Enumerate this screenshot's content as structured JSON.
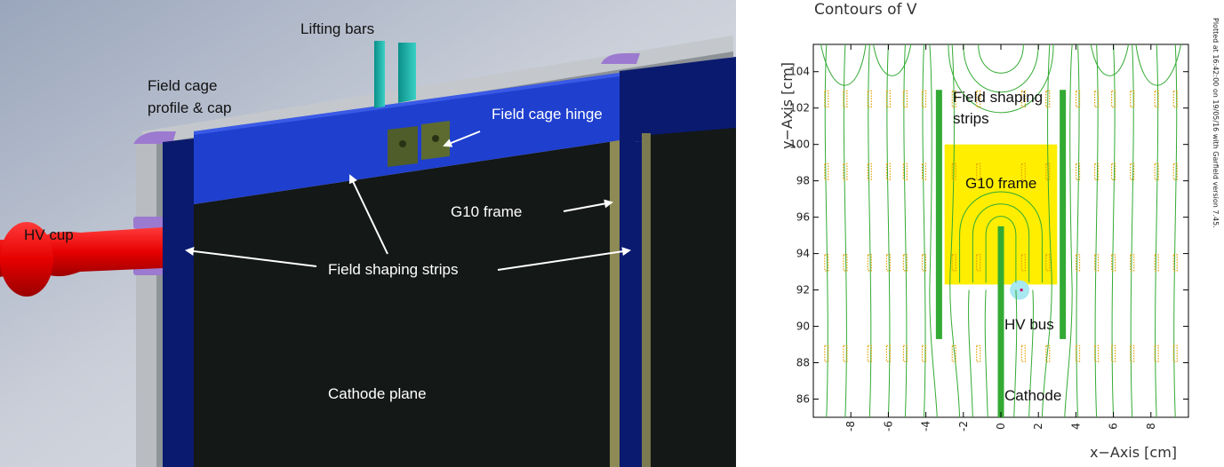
{
  "left_diagram": {
    "labels": {
      "lifting_bars": "Lifting bars",
      "field_cage_profile_line1": "Field cage",
      "field_cage_profile_line2": "profile & cap",
      "field_cage_hinge": "Field cage hinge",
      "hv_cup": "HV cup",
      "g10_frame": "G10 frame",
      "field_shaping_strips": "Field shaping strips",
      "cathode_plane": "Cathode plane"
    }
  },
  "chart_data": {
    "type": "contour",
    "title": "Contours of V",
    "xlabel": "x−Axis [cm]",
    "ylabel": "y−Axis [cm]",
    "xlim": [
      -10,
      10
    ],
    "ylim": [
      85,
      105.5
    ],
    "x_ticks": [
      -8,
      -6,
      -4,
      -2,
      0,
      2,
      4,
      6,
      8
    ],
    "y_ticks": [
      86,
      88,
      90,
      92,
      94,
      96,
      98,
      100,
      102,
      104
    ],
    "side_note": "Plotted at 16:42:00 on 19/05/16 with Garfield version 7.45.",
    "regions": {
      "g10_frame": {
        "label": "G10 frame",
        "x": [
          -3.0,
          3.0
        ],
        "y": [
          92.3,
          100.0
        ],
        "color": "#ffee00"
      },
      "field_shaping_strip_left": {
        "x": -3.3,
        "y": [
          89.3,
          103.0
        ],
        "color": "#33aa33"
      },
      "field_shaping_strip_right": {
        "x": 3.3,
        "y": [
          89.3,
          103.0
        ],
        "color": "#33aa33"
      },
      "cathode": {
        "x": 0,
        "y": [
          85.0,
          95.5
        ],
        "color": "#33aa33"
      },
      "hv_bus": {
        "x": 1.0,
        "y": 92.0,
        "r": 0.6,
        "color": "#a8e8f0"
      }
    },
    "annotations": {
      "field_shaping_strips_line1": "Field shaping",
      "field_shaping_strips_line2": "strips",
      "g10_frame": "G10 frame",
      "hv_bus": "HV bus",
      "cathode": "Cathode"
    },
    "contour_label_sample": "2000",
    "contour_color": "#33aa33",
    "label_color": "#e0a000"
  }
}
